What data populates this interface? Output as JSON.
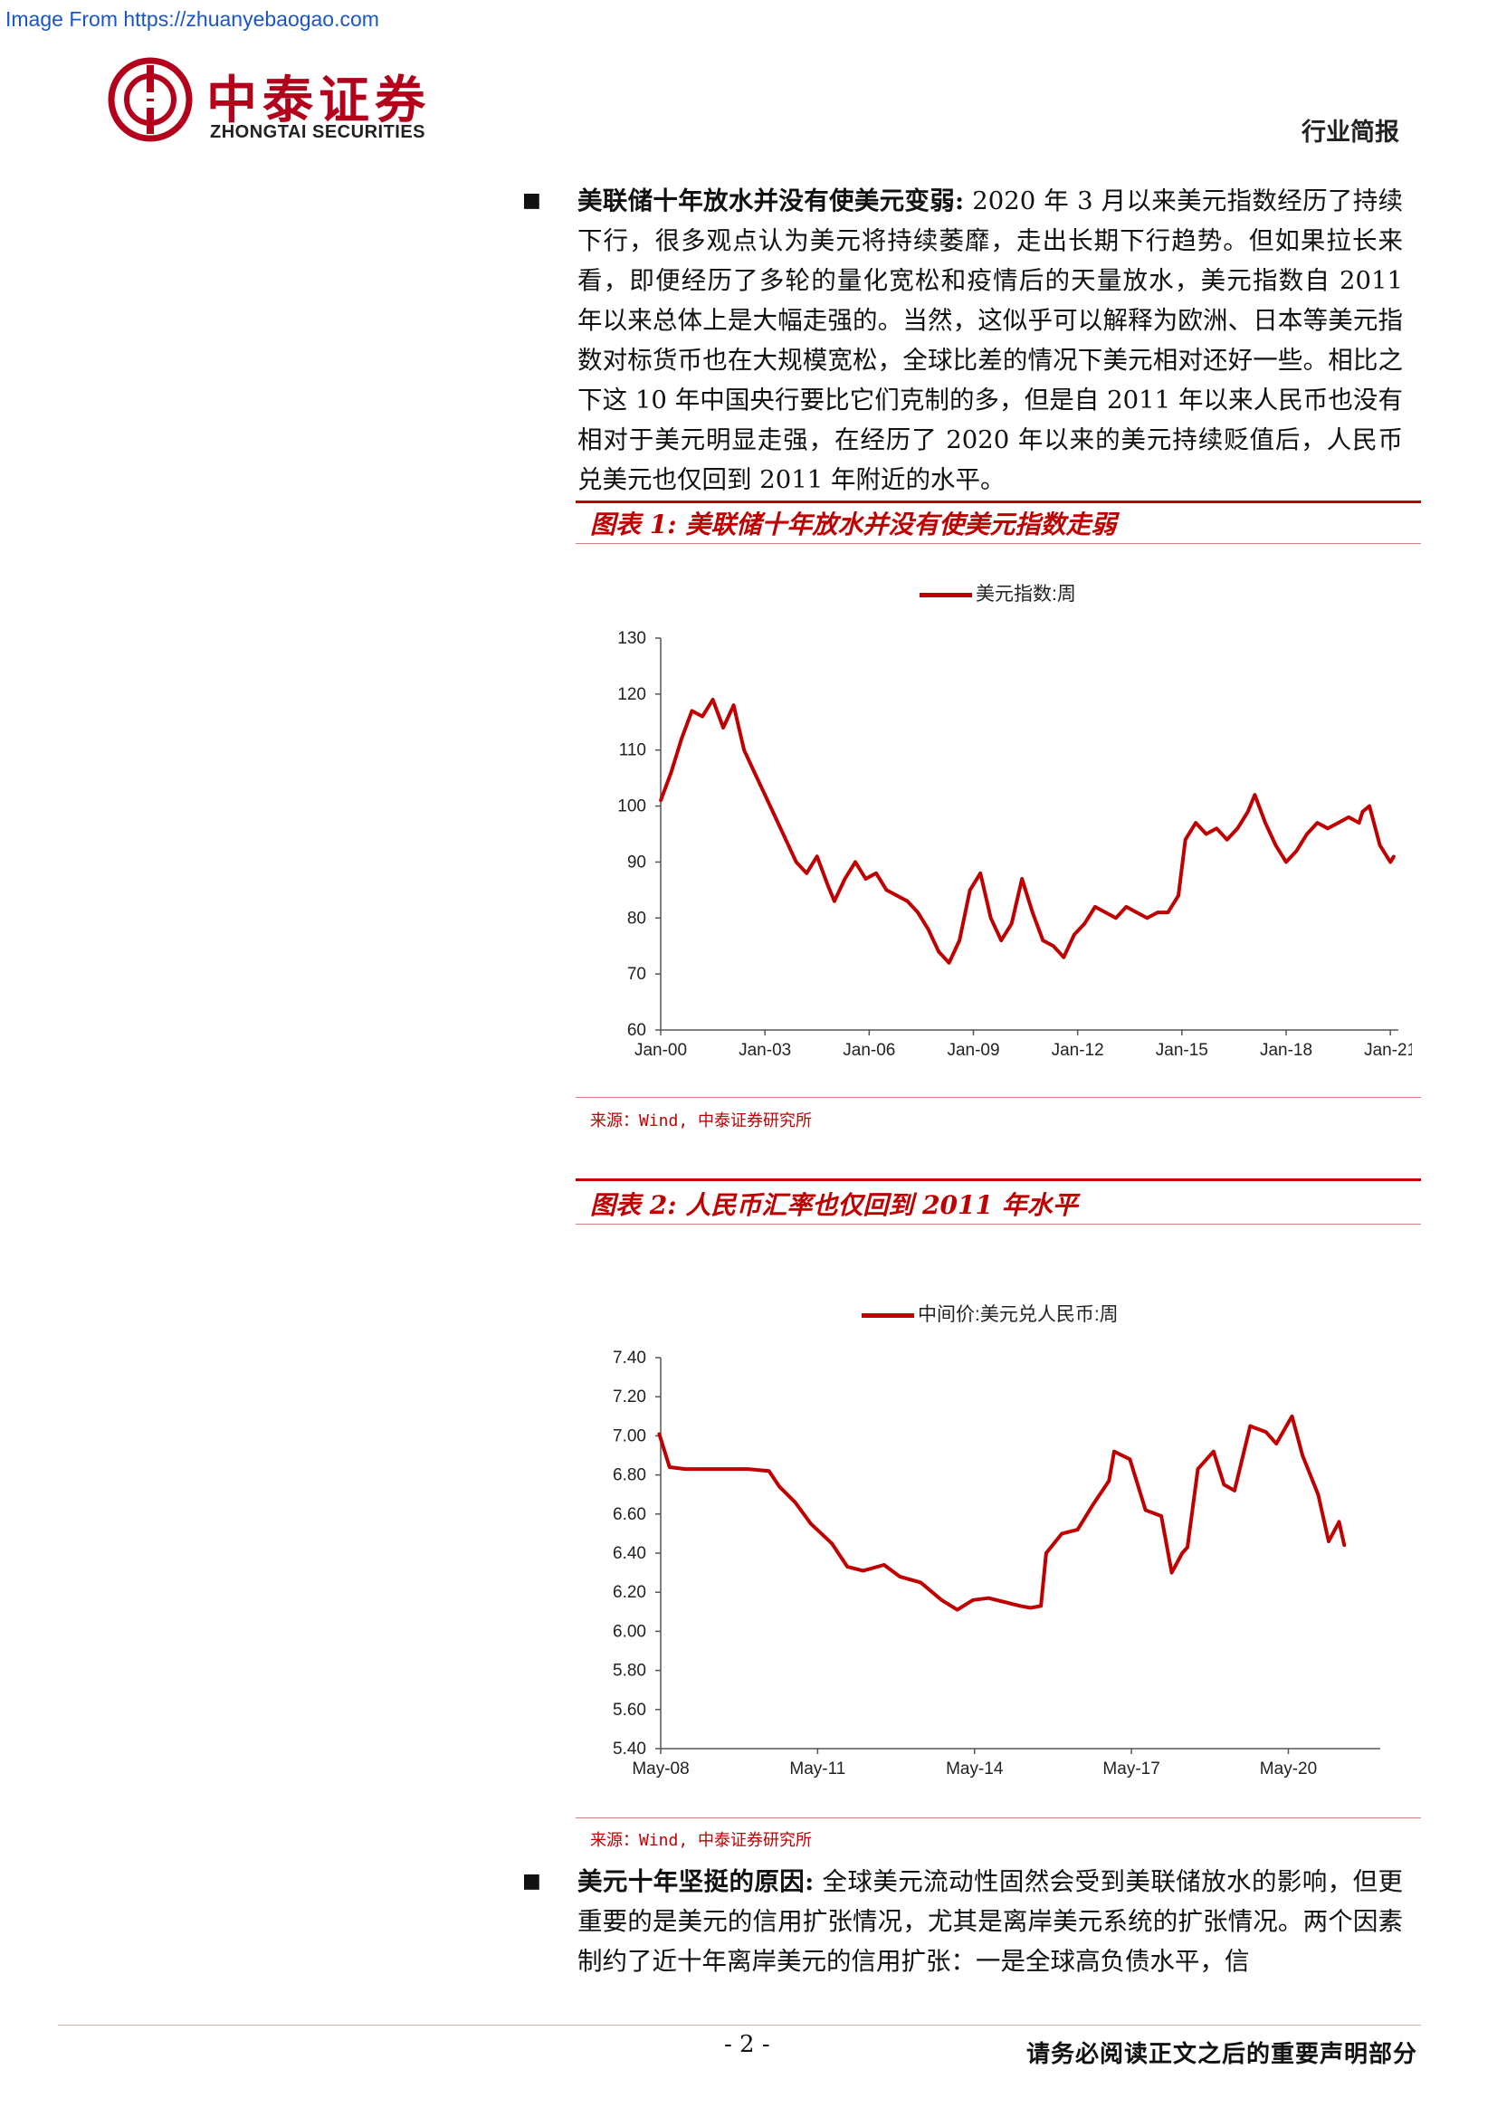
{
  "watermark": "Image From https://zhuanyebaogao.com",
  "header": {
    "logo_cn": "中泰证券",
    "logo_en": "ZHONGTAI SECURITIES",
    "report_type": "行业简报"
  },
  "para1": {
    "bullet": "■",
    "lead": "美联储十年放水并没有使美元变弱:",
    "text": " 2020 年 3 月以来美元指数经历了持续下行，很多观点认为美元将持续萎靡，走出长期下行趋势。但如果拉长来看，即便经历了多轮的量化宽松和疫情后的天量放水，美元指数自 2011 年以来总体上是大幅走强的。当然，这似乎可以解释为欧洲、日本等美元指数对标货币也在大规模宽松，全球比差的情况下美元相对还好一些。相比之下这 10 年中国央行要比它们克制的多，但是自 2011 年以来人民币也没有相对于美元明显走强，在经历了 2020 年以来的美元持续贬值后，人民币兑美元也仅回到 2011 年附近的水平。"
  },
  "figure1": {
    "title": "图表 1:  美联储十年放水并没有使美元指数走弱",
    "source": "来源：Wind, 中泰证券研究所"
  },
  "figure2": {
    "title": "图表 2:  人民币汇率也仅回到 2011 年水平",
    "source": "来源：Wind, 中泰证券研究所"
  },
  "para2": {
    "bullet": "■",
    "lead": "美元十年坚挺的原因:",
    "text": " 全球美元流动性固然会受到美联储放水的影响，但更重要的是美元的信用扩张情况，尤其是离岸美元系统的扩张情况。两个因素制约了近十年离岸美元的信用扩张：一是全球高负债水平，信"
  },
  "footer": {
    "page": "- 2 -",
    "disclaimer": "请务必阅读正文之后的重要声明部分"
  },
  "colors": {
    "accent": "#c00000",
    "brand": "#b3001b"
  },
  "chart_data": [
    {
      "type": "line",
      "series": [
        {
          "name": "美元指数:周",
          "x": [
            2000.0,
            2000.3,
            2000.6,
            2000.9,
            2001.2,
            2001.5,
            2001.8,
            2002.1,
            2002.4,
            2002.7,
            2003.0,
            2003.3,
            2003.6,
            2003.9,
            2004.2,
            2004.5,
            2004.8,
            2005.0,
            2005.3,
            2005.6,
            2005.9,
            2006.2,
            2006.5,
            2006.8,
            2007.1,
            2007.4,
            2007.7,
            2008.0,
            2008.3,
            2008.6,
            2008.9,
            2009.2,
            2009.5,
            2009.8,
            2010.1,
            2010.4,
            2010.7,
            2011.0,
            2011.3,
            2011.6,
            2011.9,
            2012.2,
            2012.5,
            2012.8,
            2013.1,
            2013.4,
            2013.7,
            2014.0,
            2014.3,
            2014.6,
            2014.9,
            2015.1,
            2015.4,
            2015.7,
            2016.0,
            2016.3,
            2016.6,
            2016.9,
            2017.1,
            2017.4,
            2017.7,
            2018.0,
            2018.3,
            2018.6,
            2018.9,
            2019.2,
            2019.5,
            2019.8,
            2020.1,
            2020.2,
            2020.4,
            2020.7,
            2021.0,
            2021.1
          ],
          "values": [
            101,
            106,
            112,
            117,
            116,
            119,
            114,
            118,
            110,
            106,
            102,
            98,
            94,
            90,
            88,
            91,
            86,
            83,
            87,
            90,
            87,
            88,
            85,
            84,
            83,
            81,
            78,
            74,
            72,
            76,
            85,
            88,
            80,
            76,
            79,
            87,
            81,
            76,
            75,
            73,
            77,
            79,
            82,
            81,
            80,
            82,
            81,
            80,
            81,
            81,
            84,
            94,
            97,
            95,
            96,
            94,
            96,
            99,
            102,
            97,
            93,
            90,
            92,
            95,
            97,
            96,
            97,
            98,
            97,
            99,
            100,
            93,
            90,
            91
          ]
        }
      ],
      "xticks": [
        "Jan-00",
        "Jan-03",
        "Jan-06",
        "Jan-09",
        "Jan-12",
        "Jan-15",
        "Jan-18",
        "Jan-21"
      ],
      "yticks": [
        "60",
        "70",
        "80",
        "90",
        "100",
        "110",
        "120",
        "130"
      ],
      "ylim": [
        60,
        130
      ],
      "xlim": [
        2000.0,
        2021.1
      ]
    },
    {
      "type": "line",
      "series": [
        {
          "name": "中间价:美元兑人民币:周",
          "x": [
            2008.3,
            2008.5,
            2008.8,
            2009.2,
            2009.6,
            2010.0,
            2010.4,
            2010.6,
            2010.9,
            2011.2,
            2011.6,
            2011.9,
            2012.2,
            2012.6,
            2012.9,
            2013.3,
            2013.7,
            2014.0,
            2014.3,
            2014.6,
            2014.9,
            2015.2,
            2015.4,
            2015.6,
            2015.7,
            2016.0,
            2016.3,
            2016.6,
            2016.9,
            2017.0,
            2017.3,
            2017.6,
            2017.9,
            2018.1,
            2018.3,
            2018.4,
            2018.6,
            2018.9,
            2019.1,
            2019.3,
            2019.6,
            2019.9,
            2020.1,
            2020.4,
            2020.6,
            2020.9,
            2021.1,
            2021.3,
            2021.4
          ],
          "values": [
            7.01,
            6.84,
            6.83,
            6.83,
            6.83,
            6.83,
            6.82,
            6.74,
            6.66,
            6.55,
            6.45,
            6.33,
            6.31,
            6.34,
            6.28,
            6.25,
            6.16,
            6.11,
            6.16,
            6.17,
            6.15,
            6.13,
            6.12,
            6.13,
            6.4,
            6.5,
            6.52,
            6.65,
            6.77,
            6.92,
            6.88,
            6.62,
            6.59,
            6.3,
            6.4,
            6.43,
            6.83,
            6.92,
            6.75,
            6.72,
            7.05,
            7.02,
            6.96,
            7.1,
            6.9,
            6.7,
            6.46,
            6.56,
            6.44
          ]
        }
      ],
      "xticks": [
        "May-08",
        "May-11",
        "May-14",
        "May-17",
        "May-20"
      ],
      "yticks": [
        "5.40",
        "5.60",
        "5.80",
        "6.00",
        "6.20",
        "6.40",
        "6.60",
        "6.80",
        "7.00",
        "7.20",
        "7.40"
      ],
      "ylim": [
        5.4,
        7.4
      ],
      "xlim": [
        2008.33,
        2022.0
      ]
    }
  ]
}
